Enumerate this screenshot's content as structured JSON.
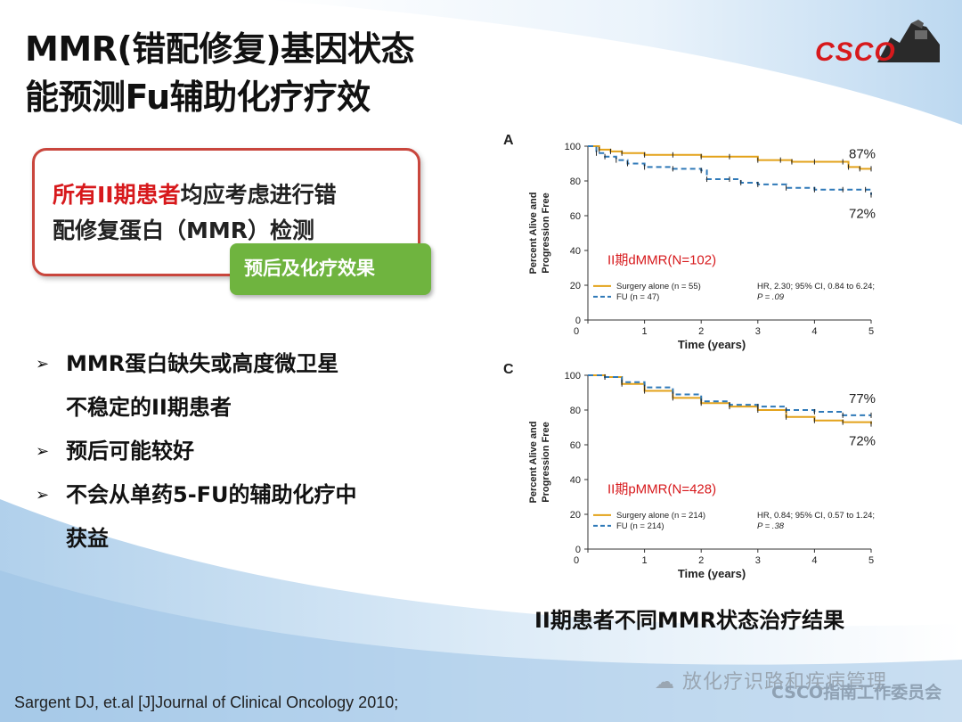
{
  "title": {
    "line1": "MMR(错配修复)基因状态",
    "line2": "能预测Fu辅助化疗疗效"
  },
  "logo": {
    "text": "CSCO"
  },
  "callout": {
    "red_text": "所有II期患者",
    "rest_line1": "均应考虑进行错",
    "line2": "配修复蛋白（MMR）检测",
    "tag": "预后及化疗效果"
  },
  "bullets": [
    {
      "lines": [
        "MMR蛋白缺失或高度微卫星",
        "不稳定的II期患者"
      ]
    },
    {
      "lines": [
        "预后可能较好"
      ]
    },
    {
      "lines": [
        "不会从单药5-FU的辅助化疗中",
        "获益"
      ]
    }
  ],
  "chart_caption": "II期患者不同MMR状态治疗结果",
  "reference": "Sargent DJ, et.al [J]Journal of Clinical Oncology 2010;",
  "watermark": "放化疗识路和疾病管理",
  "watermark2": "CSCO指南工作委员会",
  "colors": {
    "surgery": "#e3a21a",
    "fu": "#2f79b8",
    "accent_red": "#d7191c",
    "green": "#6fb43f"
  },
  "chart_data": [
    {
      "type": "line",
      "panel": "A",
      "annotation": "II期dMMR(N=102)",
      "xlabel": "Time (years)",
      "ylabel": "Percent Alive and Progression Free",
      "xlim": [
        0,
        5
      ],
      "ylim": [
        0,
        100
      ],
      "xticks": [
        0,
        1,
        2,
        3,
        4,
        5
      ],
      "yticks": [
        0,
        20,
        40,
        60,
        80,
        100
      ],
      "series": [
        {
          "name": "Surgery alone (n = 55)",
          "style": "solid",
          "end_label": "87%",
          "x": [
            0,
            0.2,
            0.4,
            0.6,
            1.0,
            1.5,
            2.0,
            2.5,
            3.0,
            3.4,
            3.6,
            4.0,
            4.5,
            4.6,
            4.8,
            5.0
          ],
          "y": [
            100,
            98,
            97,
            96,
            95,
            95,
            94,
            94,
            92,
            92,
            91,
            91,
            91,
            88,
            87,
            87
          ]
        },
        {
          "name": "FU (n = 47)",
          "style": "dashed",
          "end_label": "72%",
          "x": [
            0,
            0.15,
            0.3,
            0.5,
            0.7,
            1.0,
            1.5,
            2.0,
            2.1,
            2.5,
            2.7,
            3.0,
            3.5,
            4.0,
            4.5,
            4.9,
            5.0
          ],
          "y": [
            100,
            96,
            94,
            92,
            90,
            88,
            87,
            86,
            81,
            81,
            79,
            78,
            76,
            75,
            75,
            75,
            72
          ]
        }
      ],
      "stats": {
        "hr_text": "HR, 2.30; 95% CI, 0.84 to 6.24;",
        "p_text": "P = .09"
      }
    },
    {
      "type": "line",
      "panel": "C",
      "annotation": "II期pMMR(N=428)",
      "xlabel": "Time (years)",
      "ylabel": "Percent Alive and Progression Free",
      "xlim": [
        0,
        5
      ],
      "ylim": [
        0,
        100
      ],
      "xticks": [
        0,
        1,
        2,
        3,
        4,
        5
      ],
      "yticks": [
        0,
        20,
        40,
        60,
        80,
        100
      ],
      "series": [
        {
          "name": "Surgery alone (n = 214)",
          "style": "solid",
          "end_label": "72%",
          "x": [
            0,
            0.3,
            0.6,
            1.0,
            1.5,
            2.0,
            2.5,
            3.0,
            3.5,
            4.0,
            4.5,
            5.0
          ],
          "y": [
            100,
            99,
            95,
            91,
            87,
            84,
            82,
            80,
            76,
            74,
            73,
            72
          ]
        },
        {
          "name": "FU (n = 214)",
          "style": "dashed",
          "end_label": "77%",
          "x": [
            0,
            0.3,
            0.6,
            1.0,
            1.5,
            2.0,
            2.5,
            3.0,
            3.5,
            4.0,
            4.5,
            5.0
          ],
          "y": [
            100,
            99,
            96,
            93,
            89,
            85,
            83,
            82,
            80,
            79,
            77,
            77
          ]
        }
      ],
      "stats": {
        "hr_text": "HR, 0.84; 95% CI, 0.57 to 1.24;",
        "p_text": "P = .38"
      }
    }
  ]
}
